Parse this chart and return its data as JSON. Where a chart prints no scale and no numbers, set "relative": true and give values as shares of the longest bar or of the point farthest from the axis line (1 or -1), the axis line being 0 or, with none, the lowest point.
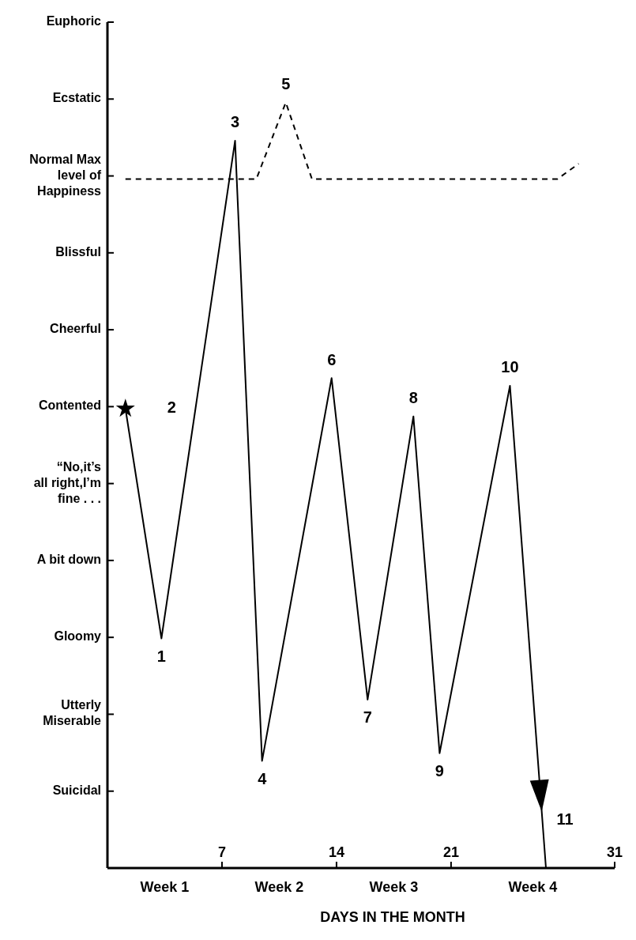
{
  "chart_data": {
    "type": "line",
    "xlabel": "DAYS IN THE MONTH",
    "xlim": [
      0,
      31
    ],
    "xticks": [
      7,
      14,
      21,
      31
    ],
    "relative": true,
    "y_categories": [
      "Euphoric",
      "Ecstatic",
      "Normal Max\nlevel of\nHappiness",
      "Blissful",
      "Cheerful",
      "Contented",
      "“No,it’s\nall right,I’m\nfine . . .",
      "A bit down",
      "Gloomy",
      "Utterly\nMiserable",
      "Suicidal"
    ],
    "series": [
      {
        "color": "#000000",
        "line_style": "solid",
        "x": [
          1.1,
          3.3,
          5.38,
          7.8,
          9.45,
          13.7,
          15.9,
          18.7,
          20.3,
          24.6,
          26.8
        ],
        "values": [
          0.6,
          0.3,
          0.6,
          0.95,
          0.14,
          0.64,
          0.22,
          0.59,
          0.15,
          0.63,
          0
        ]
      },
      {
        "color": "#000000",
        "line_style": "dashed",
        "x": [
          1.1,
          9.1,
          10.9,
          12.5,
          27.5,
          28.8
        ],
        "values": [
          0.9,
          0.9,
          1,
          0.9,
          0.9,
          0.92
        ]
      }
    ],
    "annotations": [
      {
        "text": "1",
        "x": 3.3,
        "y": 0.3
      },
      {
        "text": "2",
        "x": 5.38,
        "y": 0.6
      },
      {
        "text": "3",
        "x": 7.8,
        "y": 0.95
      },
      {
        "text": "4",
        "x": 9.45,
        "y": 0.14
      },
      {
        "text": "5",
        "x": 10.9,
        "y": 1
      },
      {
        "text": "6",
        "x": 13.7,
        "y": 0.64
      },
      {
        "text": "7",
        "x": 15.9,
        "y": 0.22
      },
      {
        "text": "8",
        "x": 18.7,
        "y": 0.59
      },
      {
        "text": "9",
        "x": 20.3,
        "y": 0.15
      },
      {
        "text": "10",
        "x": 24.6,
        "y": 0.63
      },
      {
        "text": "11",
        "x": 26.8,
        "y": 0
      },
      "Week 1",
      "Week 2",
      "Week 3",
      "Week 4"
    ],
    "grid": false,
    "marker": "none"
  }
}
